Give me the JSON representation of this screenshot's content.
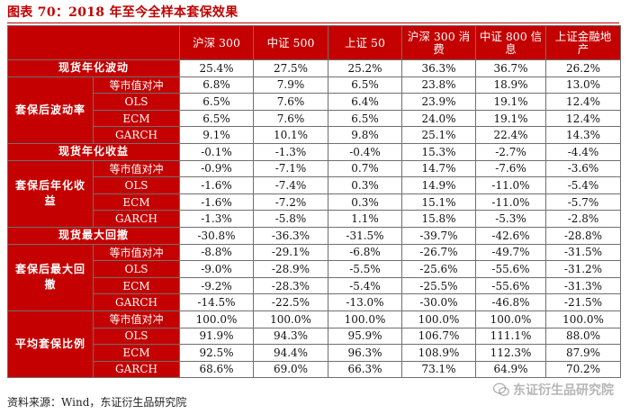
{
  "caption": "图表 70：2018 年至今全样本套保效果",
  "headers": [
    "沪深 300",
    "中证 500",
    "上证 50",
    "沪深 300 消费",
    "中证 800 信息",
    "上证金融地产"
  ],
  "groups": [
    {
      "label": "现货年化波动",
      "rows": [
        {
          "label": "",
          "values": [
            "25.4%",
            "27.5%",
            "25.2%",
            "36.3%",
            "36.7%",
            "26.2%"
          ]
        }
      ]
    },
    {
      "label": "套保后波动率",
      "rows": [
        {
          "label": "等市值对冲",
          "values": [
            "6.8%",
            "7.9%",
            "6.5%",
            "23.8%",
            "18.9%",
            "13.0%"
          ]
        },
        {
          "label": "OLS",
          "values": [
            "6.5%",
            "7.6%",
            "6.4%",
            "23.9%",
            "19.1%",
            "12.4%"
          ]
        },
        {
          "label": "ECM",
          "values": [
            "6.5%",
            "7.6%",
            "6.5%",
            "24.0%",
            "19.1%",
            "12.4%"
          ]
        },
        {
          "label": "GARCH",
          "values": [
            "9.1%",
            "10.1%",
            "9.8%",
            "25.1%",
            "22.4%",
            "14.3%"
          ]
        }
      ]
    },
    {
      "label": "现货年化收益",
      "rows": [
        {
          "label": "",
          "values": [
            "-0.1%",
            "-1.3%",
            "-0.4%",
            "15.3%",
            "-2.7%",
            "-4.4%"
          ]
        }
      ]
    },
    {
      "label": "套保后年化收益",
      "rows": [
        {
          "label": "等市值对冲",
          "values": [
            "-0.9%",
            "-7.1%",
            "0.7%",
            "14.7%",
            "-7.6%",
            "-3.6%"
          ]
        },
        {
          "label": "OLS",
          "values": [
            "-1.6%",
            "-7.4%",
            "0.3%",
            "14.9%",
            "-11.0%",
            "-5.4%"
          ]
        },
        {
          "label": "ECM",
          "values": [
            "-1.6%",
            "-7.2%",
            "0.3%",
            "15.1%",
            "-11.0%",
            "-5.7%"
          ]
        },
        {
          "label": "GARCH",
          "values": [
            "-1.3%",
            "-5.8%",
            "1.1%",
            "15.8%",
            "-5.3%",
            "-2.8%"
          ]
        }
      ]
    },
    {
      "label": "现货最大回撤",
      "rows": [
        {
          "label": "",
          "values": [
            "-30.8%",
            "-36.3%",
            "-31.5%",
            "-39.7%",
            "-42.6%",
            "-28.8%"
          ]
        }
      ]
    },
    {
      "label": "套保后最大回撤",
      "rows": [
        {
          "label": "等市值对冲",
          "values": [
            "-8.8%",
            "-29.1%",
            "-6.8%",
            "-26.7%",
            "-49.7%",
            "-31.5%"
          ]
        },
        {
          "label": "OLS",
          "values": [
            "-9.0%",
            "-28.9%",
            "-5.5%",
            "-25.6%",
            "-55.6%",
            "-31.2%"
          ]
        },
        {
          "label": "ECM",
          "values": [
            "-9.2%",
            "-28.3%",
            "-5.4%",
            "-25.5%",
            "-55.6%",
            "-31.3%"
          ]
        },
        {
          "label": "GARCH",
          "values": [
            "-14.5%",
            "-22.5%",
            "-13.0%",
            "-30.0%",
            "-46.8%",
            "-21.5%"
          ]
        }
      ]
    },
    {
      "label": "平均套保比例",
      "rows": [
        {
          "label": "等市值对冲",
          "values": [
            "100.0%",
            "100.0%",
            "100.0%",
            "100.0%",
            "100.0%",
            "100.0%"
          ]
        },
        {
          "label": "OLS",
          "values": [
            "91.9%",
            "94.3%",
            "95.9%",
            "106.7%",
            "111.1%",
            "88.0%"
          ]
        },
        {
          "label": "ECM",
          "values": [
            "92.5%",
            "94.4%",
            "96.3%",
            "108.9%",
            "112.3%",
            "87.9%"
          ]
        },
        {
          "label": "GARCH",
          "values": [
            "68.6%",
            "69.0%",
            "66.3%",
            "73.1%",
            "64.9%",
            "70.2%"
          ]
        }
      ]
    }
  ],
  "source": "资料来源：Wind，东证衍生品研究院",
  "watermark": "东证衍生品研究院",
  "colors": {
    "header_bg": "#c40000",
    "caption": "#c00000",
    "border": "#6f6f6f"
  }
}
